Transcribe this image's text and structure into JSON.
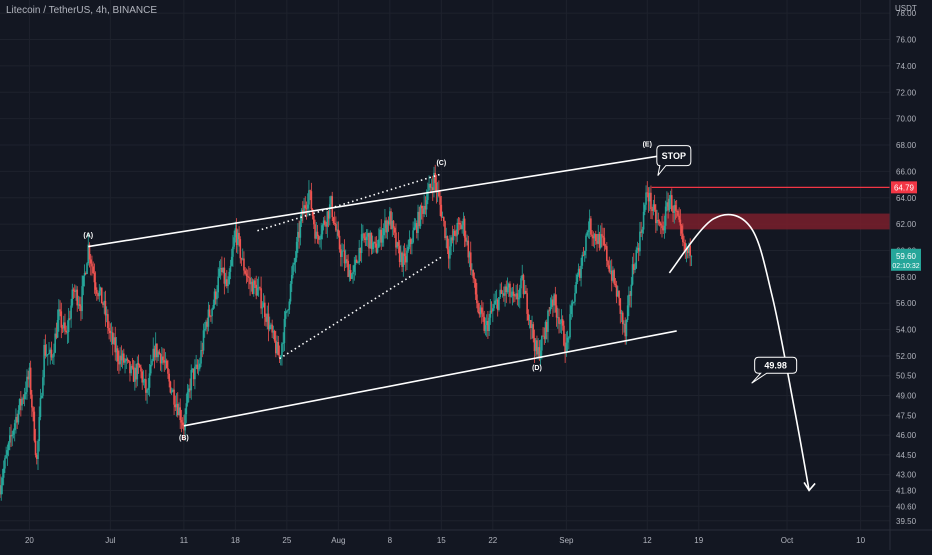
{
  "header": {
    "symbol_title": "Litecoin / TetherUS, 4h, BINANCE",
    "currency": "USDT"
  },
  "colors": {
    "background": "#131722",
    "candle_up": "#26a69a",
    "candle_down": "#ef5350",
    "pattern_line": "#ffffff",
    "stop_line": "#f23645",
    "stop_zone": "#7a1e2c",
    "axis_text": "#b2b5be",
    "current_price_badge": "#26a69a"
  },
  "chart_data": {
    "type": "candlestick",
    "timeframe": "4h",
    "ylim": [
      38.8,
      79.0
    ],
    "y_ticks": [
      39.5,
      40.6,
      41.8,
      43.0,
      44.5,
      46.0,
      47.5,
      49.0,
      50.5,
      52.0,
      54.0,
      56.0,
      58.0,
      60.0,
      62.0,
      64.0,
      66.0,
      68.0,
      70.0,
      72.0,
      74.0,
      76.0,
      78.0
    ],
    "y_tick_labels": [
      "39.50",
      "40.60",
      "41.80",
      "43.00",
      "44.50",
      "46.00",
      "47.50",
      "49.00",
      "50.50",
      "52.00",
      "54.00",
      "56.00",
      "58.00",
      "60.00",
      "62.00",
      "64.00",
      "66.00",
      "68.00",
      "70.00",
      "72.00",
      "74.00",
      "76.00",
      "78.00"
    ],
    "x_ticks": [
      {
        "label": "20",
        "t": 0
      },
      {
        "label": "Jul",
        "t": 11
      },
      {
        "label": "11",
        "t": 21
      },
      {
        "label": "18",
        "t": 28
      },
      {
        "label": "25",
        "t": 35
      },
      {
        "label": "Aug",
        "t": 42
      },
      {
        "label": "8",
        "t": 49
      },
      {
        "label": "15",
        "t": 56
      },
      {
        "label": "22",
        "t": 63
      },
      {
        "label": "Sep",
        "t": 73
      },
      {
        "label": "12",
        "t": 84
      },
      {
        "label": "19",
        "t": 91
      },
      {
        "label": "Oct",
        "t": 103
      },
      {
        "label": "10",
        "t": 113
      }
    ],
    "price_path": [
      [
        -4,
        42.2
      ],
      [
        -2,
        47.0
      ],
      [
        0,
        50.5
      ],
      [
        1,
        44.0
      ],
      [
        2,
        52.5
      ],
      [
        3,
        51.8
      ],
      [
        4,
        55.0
      ],
      [
        5,
        53.5
      ],
      [
        6,
        57.0
      ],
      [
        7,
        56.0
      ],
      [
        8,
        60.3
      ],
      [
        9,
        57.5
      ],
      [
        10,
        56.0
      ],
      [
        11,
        53.5
      ],
      [
        12,
        52.0
      ],
      [
        13,
        51.5
      ],
      [
        14,
        50.5
      ],
      [
        15,
        51.0
      ],
      [
        16,
        49.0
      ],
      [
        17,
        52.5
      ],
      [
        18,
        52.0
      ],
      [
        19,
        50.0
      ],
      [
        20,
        48.5
      ],
      [
        21,
        46.7
      ],
      [
        22,
        50.5
      ],
      [
        23,
        51.0
      ],
      [
        24,
        54.5
      ],
      [
        25,
        56.0
      ],
      [
        26,
        58.5
      ],
      [
        27,
        57.0
      ],
      [
        28,
        61.5
      ],
      [
        29,
        59.0
      ],
      [
        30,
        57.5
      ],
      [
        31,
        57.0
      ],
      [
        32,
        55.5
      ],
      [
        33,
        53.5
      ],
      [
        34,
        51.8
      ],
      [
        35,
        55.5
      ],
      [
        36,
        59.0
      ],
      [
        37,
        62.5
      ],
      [
        38,
        64.5
      ],
      [
        39,
        61.0
      ],
      [
        40,
        62.0
      ],
      [
        41,
        63.5
      ],
      [
        42,
        60.5
      ],
      [
        43,
        59.0
      ],
      [
        44,
        58.0
      ],
      [
        45,
        60.5
      ],
      [
        46,
        61.0
      ],
      [
        47,
        60.0
      ],
      [
        48,
        61.5
      ],
      [
        49,
        62.5
      ],
      [
        50,
        60.0
      ],
      [
        51,
        59.0
      ],
      [
        52,
        61.0
      ],
      [
        53,
        62.5
      ],
      [
        54,
        64.0
      ],
      [
        55,
        65.5
      ],
      [
        56,
        63.0
      ],
      [
        57,
        60.0
      ],
      [
        58,
        61.5
      ],
      [
        59,
        62.0
      ],
      [
        60,
        59.0
      ],
      [
        61,
        55.5
      ],
      [
        62,
        54.0
      ],
      [
        63,
        55.5
      ],
      [
        64,
        56.5
      ],
      [
        65,
        57.0
      ],
      [
        66,
        56.0
      ],
      [
        67,
        57.5
      ],
      [
        68,
        55.0
      ],
      [
        69,
        52.0
      ],
      [
        70,
        53.5
      ],
      [
        71,
        56.5
      ],
      [
        72,
        55.0
      ],
      [
        73,
        52.5
      ],
      [
        74,
        56.5
      ],
      [
        75,
        59.0
      ],
      [
        76,
        62.0
      ],
      [
        77,
        61.0
      ],
      [
        78,
        60.5
      ],
      [
        79,
        58.5
      ],
      [
        80,
        56.5
      ],
      [
        81,
        53.5
      ],
      [
        82,
        58.5
      ],
      [
        83,
        61.0
      ],
      [
        84,
        64.5
      ],
      [
        85,
        62.5
      ],
      [
        86,
        61.5
      ],
      [
        87,
        64.0
      ],
      [
        88,
        62.5
      ],
      [
        89,
        60.0
      ],
      [
        90,
        59.6
      ]
    ],
    "current_price": {
      "label": "59.60",
      "countdown": "02:10:32",
      "value": 59.6
    },
    "stop": {
      "label": "STOP",
      "price": 64.79,
      "price_label": "64.79"
    },
    "stop_zone": {
      "from": 61.6,
      "to": 62.8
    },
    "wave_points": [
      {
        "label": "(A)",
        "t": 8,
        "price": 60.3
      },
      {
        "label": "(B)",
        "t": 21,
        "price": 46.7
      },
      {
        "label": "(C)",
        "t": 56,
        "price": 65.8
      },
      {
        "label": "(D)",
        "t": 69,
        "price": 52.0
      },
      {
        "label": "(E)",
        "t": 84,
        "price": 67.2
      }
    ],
    "upper_trendline": [
      [
        8,
        60.3
      ],
      [
        86,
        67.2
      ]
    ],
    "lower_trendline": [
      [
        21,
        46.7
      ],
      [
        88,
        53.9
      ]
    ],
    "dotted_lines": [
      [
        [
          31,
          61.5
        ],
        [
          56,
          65.8
        ]
      ],
      [
        [
          34,
          51.8
        ],
        [
          56,
          59.5
        ]
      ]
    ],
    "forecast_path": [
      [
        87,
        58.3
      ],
      [
        93,
        62.4
      ],
      [
        98,
        61.8
      ],
      [
        101,
        56.5
      ],
      [
        104,
        48.0
      ],
      [
        106,
        41.8
      ]
    ],
    "forecast_target": {
      "label": "49.98",
      "price": 49.98
    }
  }
}
